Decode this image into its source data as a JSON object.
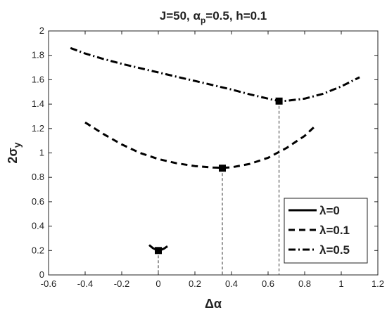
{
  "chart_data": {
    "type": "line",
    "title": "J=50, α_p=0.5, h=0.1",
    "title_parts": {
      "main": "J=50, α",
      "sub": "p",
      "rest": "=0.5, h=0.1"
    },
    "xlabel": "Δα",
    "ylabel": {
      "main": "2σ",
      "sub": "y"
    },
    "xlim": [
      -0.6,
      1.2
    ],
    "ylim": [
      0,
      2
    ],
    "xticks": [
      -0.6,
      -0.4,
      -0.2,
      0,
      0.2,
      0.4,
      0.6,
      0.8,
      1,
      1.2
    ],
    "yticks": [
      0,
      0.2,
      0.4,
      0.6,
      0.8,
      1,
      1.2,
      1.4,
      1.6,
      1.8,
      2
    ],
    "xtick_labels": [
      "-0.6",
      "-0.4",
      "-0.2",
      "0",
      "0.2",
      "0.4",
      "0.6",
      "0.8",
      "1",
      "1.2"
    ],
    "ytick_labels": [
      "0",
      "0.2",
      "0.4",
      "0.6",
      "0.8",
      "1",
      "1.2",
      "1.4",
      "1.6",
      "1.8",
      "2"
    ],
    "grid": false,
    "legend_position": "bottom-right",
    "series": [
      {
        "name": "λ=0",
        "style": "solid",
        "x": [
          -0.05,
          -0.03,
          -0.01,
          0.0,
          0.01,
          0.03,
          0.05
        ],
        "y": [
          0.245,
          0.22,
          0.205,
          0.2,
          0.203,
          0.215,
          0.235
        ],
        "min": {
          "x": 0.0,
          "y": 0.2
        }
      },
      {
        "name": "λ=0.1",
        "style": "dashed",
        "x": [
          -0.4,
          -0.3,
          -0.2,
          -0.1,
          0.0,
          0.1,
          0.2,
          0.3,
          0.35,
          0.4,
          0.5,
          0.6,
          0.7,
          0.8,
          0.85
        ],
        "y": [
          1.25,
          1.155,
          1.07,
          1.0,
          0.95,
          0.915,
          0.892,
          0.88,
          0.878,
          0.882,
          0.91,
          0.96,
          1.04,
          1.14,
          1.21
        ],
        "min": {
          "x": 0.35,
          "y": 0.875
        }
      },
      {
        "name": "λ=0.5",
        "style": "dashdot",
        "x": [
          -0.48,
          -0.4,
          -0.3,
          -0.2,
          -0.1,
          0.0,
          0.1,
          0.2,
          0.3,
          0.4,
          0.5,
          0.6,
          0.66,
          0.7,
          0.8,
          0.9,
          1.0,
          1.1
        ],
        "y": [
          1.86,
          1.815,
          1.77,
          1.73,
          1.695,
          1.66,
          1.625,
          1.59,
          1.555,
          1.52,
          1.48,
          1.445,
          1.425,
          1.427,
          1.445,
          1.485,
          1.545,
          1.62
        ],
        "min": {
          "x": 0.66,
          "y": 1.425
        }
      }
    ]
  }
}
